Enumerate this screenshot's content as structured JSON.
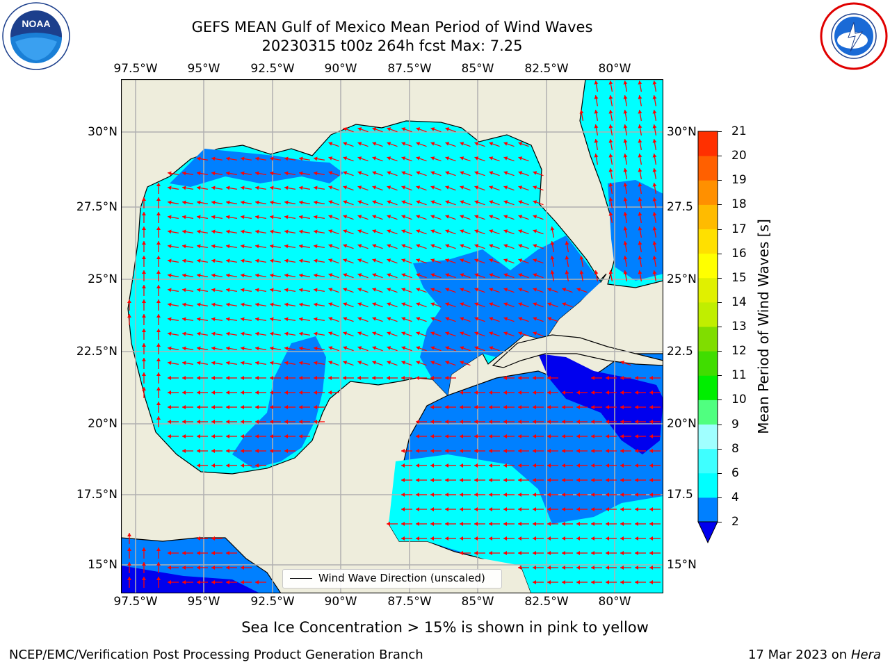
{
  "header": {
    "title_line1": "GEFS MEAN Gulf of Mexico Mean Period of Wind Waves",
    "title_line2": "20230315 t00z 264h fcst   Max: 7.25"
  },
  "logos": {
    "noaa": {
      "center_text": "NOAA",
      "ring_text": "NATIONAL OCEANIC AND ATMOSPHERIC ADMINISTRATION",
      "bottom_text": "U.S. DEPARTMENT OF COMMERCE"
    },
    "nws": {
      "ring_text": "NATIONAL WEATHER SERVICE"
    }
  },
  "map": {
    "lon_labels": [
      "97.5°W",
      "95°W",
      "92.5°W",
      "90°W",
      "87.5°W",
      "85°W",
      "82.5°W",
      "80°W"
    ],
    "lat_labels_left": [
      "30°N",
      "27.5°N",
      "25°N",
      "22.5°N",
      "20°N",
      "17.5°N",
      "15°N"
    ],
    "lat_labels_right": [
      "30°N",
      "27.5",
      "25°N",
      "22.5",
      "20°N",
      "17.5",
      "15°N"
    ],
    "legend_label": "Wind Wave Direction (unscaled)",
    "colors": {
      "land": "#eeeddc",
      "coast": "#000000",
      "grid": "#b0b0b0",
      "arrow": "#ff0000",
      "low": "#0000ee",
      "mid": "#0080ff",
      "high": "#00ffff"
    }
  },
  "colorbar": {
    "label": "Mean Period of Wind Waves [s]",
    "ticks": [
      "2",
      "4",
      "6",
      "8",
      "9",
      "10",
      "11",
      "12",
      "13",
      "14",
      "15",
      "16",
      "17",
      "18",
      "19",
      "20",
      "21"
    ],
    "colors": [
      "#0080ff",
      "#00ffff",
      "#3fffff",
      "#a0ffff",
      "#50ff80",
      "#00ee00",
      "#40dd00",
      "#80dd00",
      "#c0ee00",
      "#e0f000",
      "#ffff00",
      "#ffe000",
      "#ffbb00",
      "#ff9000",
      "#ff6000",
      "#ff3000",
      "#ff0000"
    ],
    "extend_color": "#0000ee"
  },
  "footer": {
    "sea_ice_note": "Sea Ice Concentration > 15% is shown in pink to yellow",
    "credit": "NCEP/EMC/Verification Post Processing Product Generation Branch",
    "date": "17 Mar 2023 on",
    "machine": "Hera"
  }
}
